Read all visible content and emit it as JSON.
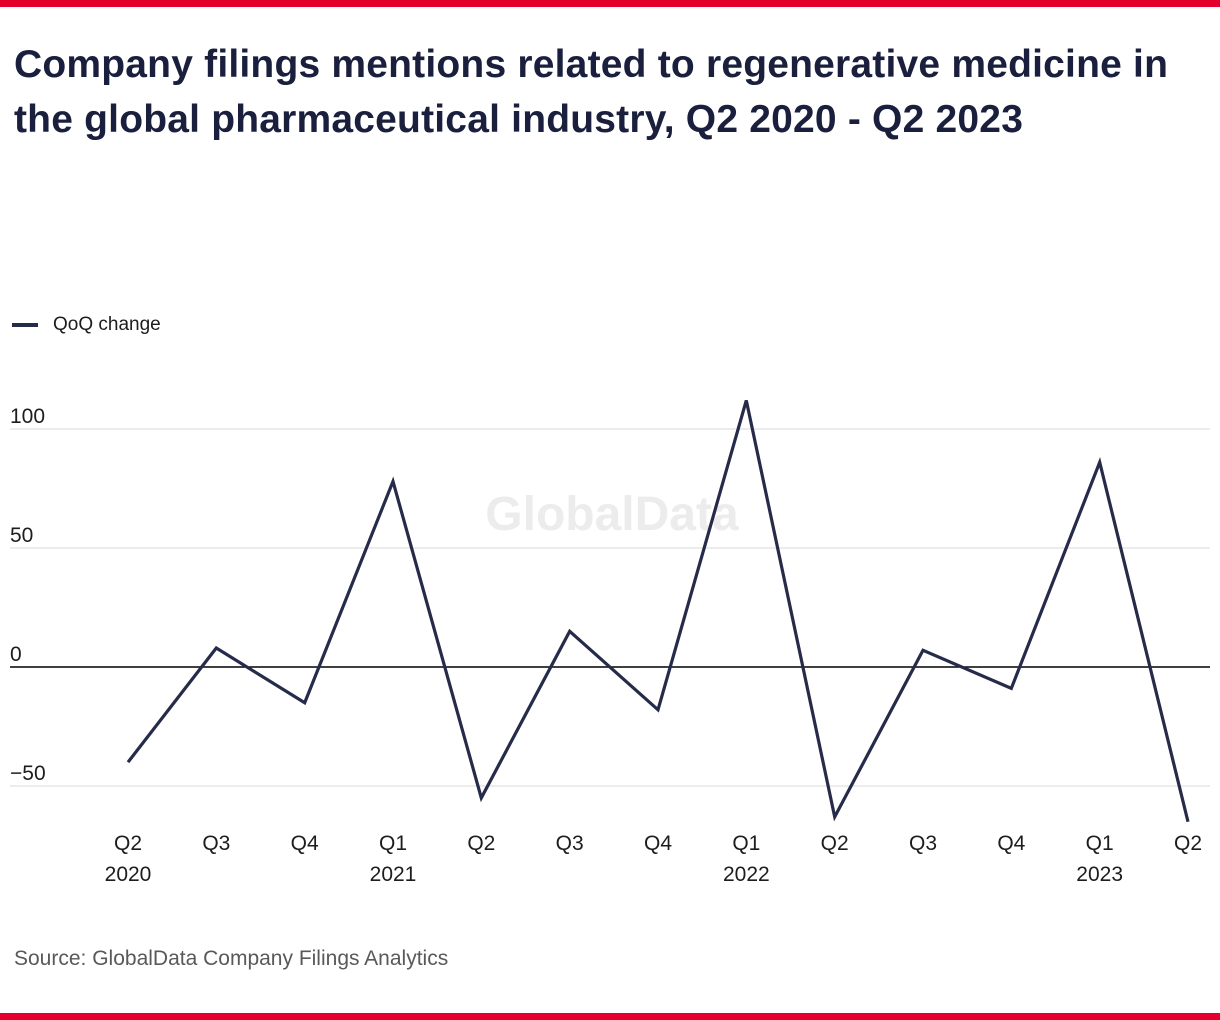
{
  "page": {
    "accent_color": "#e4002b",
    "background_color": "#ffffff"
  },
  "header": {
    "title": "Company filings mentions related to regenerative medicine in the global pharmaceutical industry, Q2 2020 - Q2 2023",
    "title_color": "#1a1f3d"
  },
  "legend": {
    "label": "QoQ change"
  },
  "chart_data": {
    "type": "line",
    "title": "Company filings mentions related to regenerative medicine in the global pharmaceutical industry, Q2 2020 - Q2 2023",
    "series": [
      {
        "name": "QoQ change",
        "values": [
          -40,
          8,
          -15,
          78,
          -55,
          15,
          -18,
          112,
          -63,
          7,
          -9,
          86,
          -65
        ]
      }
    ],
    "categories": [
      "Q2 2020",
      "Q3 2020",
      "Q4 2020",
      "Q1 2021",
      "Q2 2021",
      "Q3 2021",
      "Q4 2021",
      "Q1 2022",
      "Q2 2022",
      "Q3 2022",
      "Q4 2022",
      "Q1 2023",
      "Q2 2023"
    ],
    "x_labels": [
      {
        "quarter": "Q2",
        "year": "2020"
      },
      {
        "quarter": "Q3"
      },
      {
        "quarter": "Q4"
      },
      {
        "quarter": "Q1",
        "year": "2021"
      },
      {
        "quarter": "Q2"
      },
      {
        "quarter": "Q3"
      },
      {
        "quarter": "Q4"
      },
      {
        "quarter": "Q1",
        "year": "2022"
      },
      {
        "quarter": "Q2"
      },
      {
        "quarter": "Q3"
      },
      {
        "quarter": "Q4"
      },
      {
        "quarter": "Q1",
        "year": "2023"
      },
      {
        "quarter": "Q2"
      }
    ],
    "y_ticks": [
      100,
      50,
      0,
      -50
    ],
    "ylim": [
      -75,
      120
    ],
    "grid": true,
    "legend_position": "top-left",
    "line_color": "#262b49",
    "grid_color": "#d9d9d9",
    "zero_line_color": "#000000",
    "watermark": "GlobalData",
    "watermark_color": "#ececec"
  },
  "footer": {
    "source": "Source: GlobalData Company Filings Analytics"
  }
}
